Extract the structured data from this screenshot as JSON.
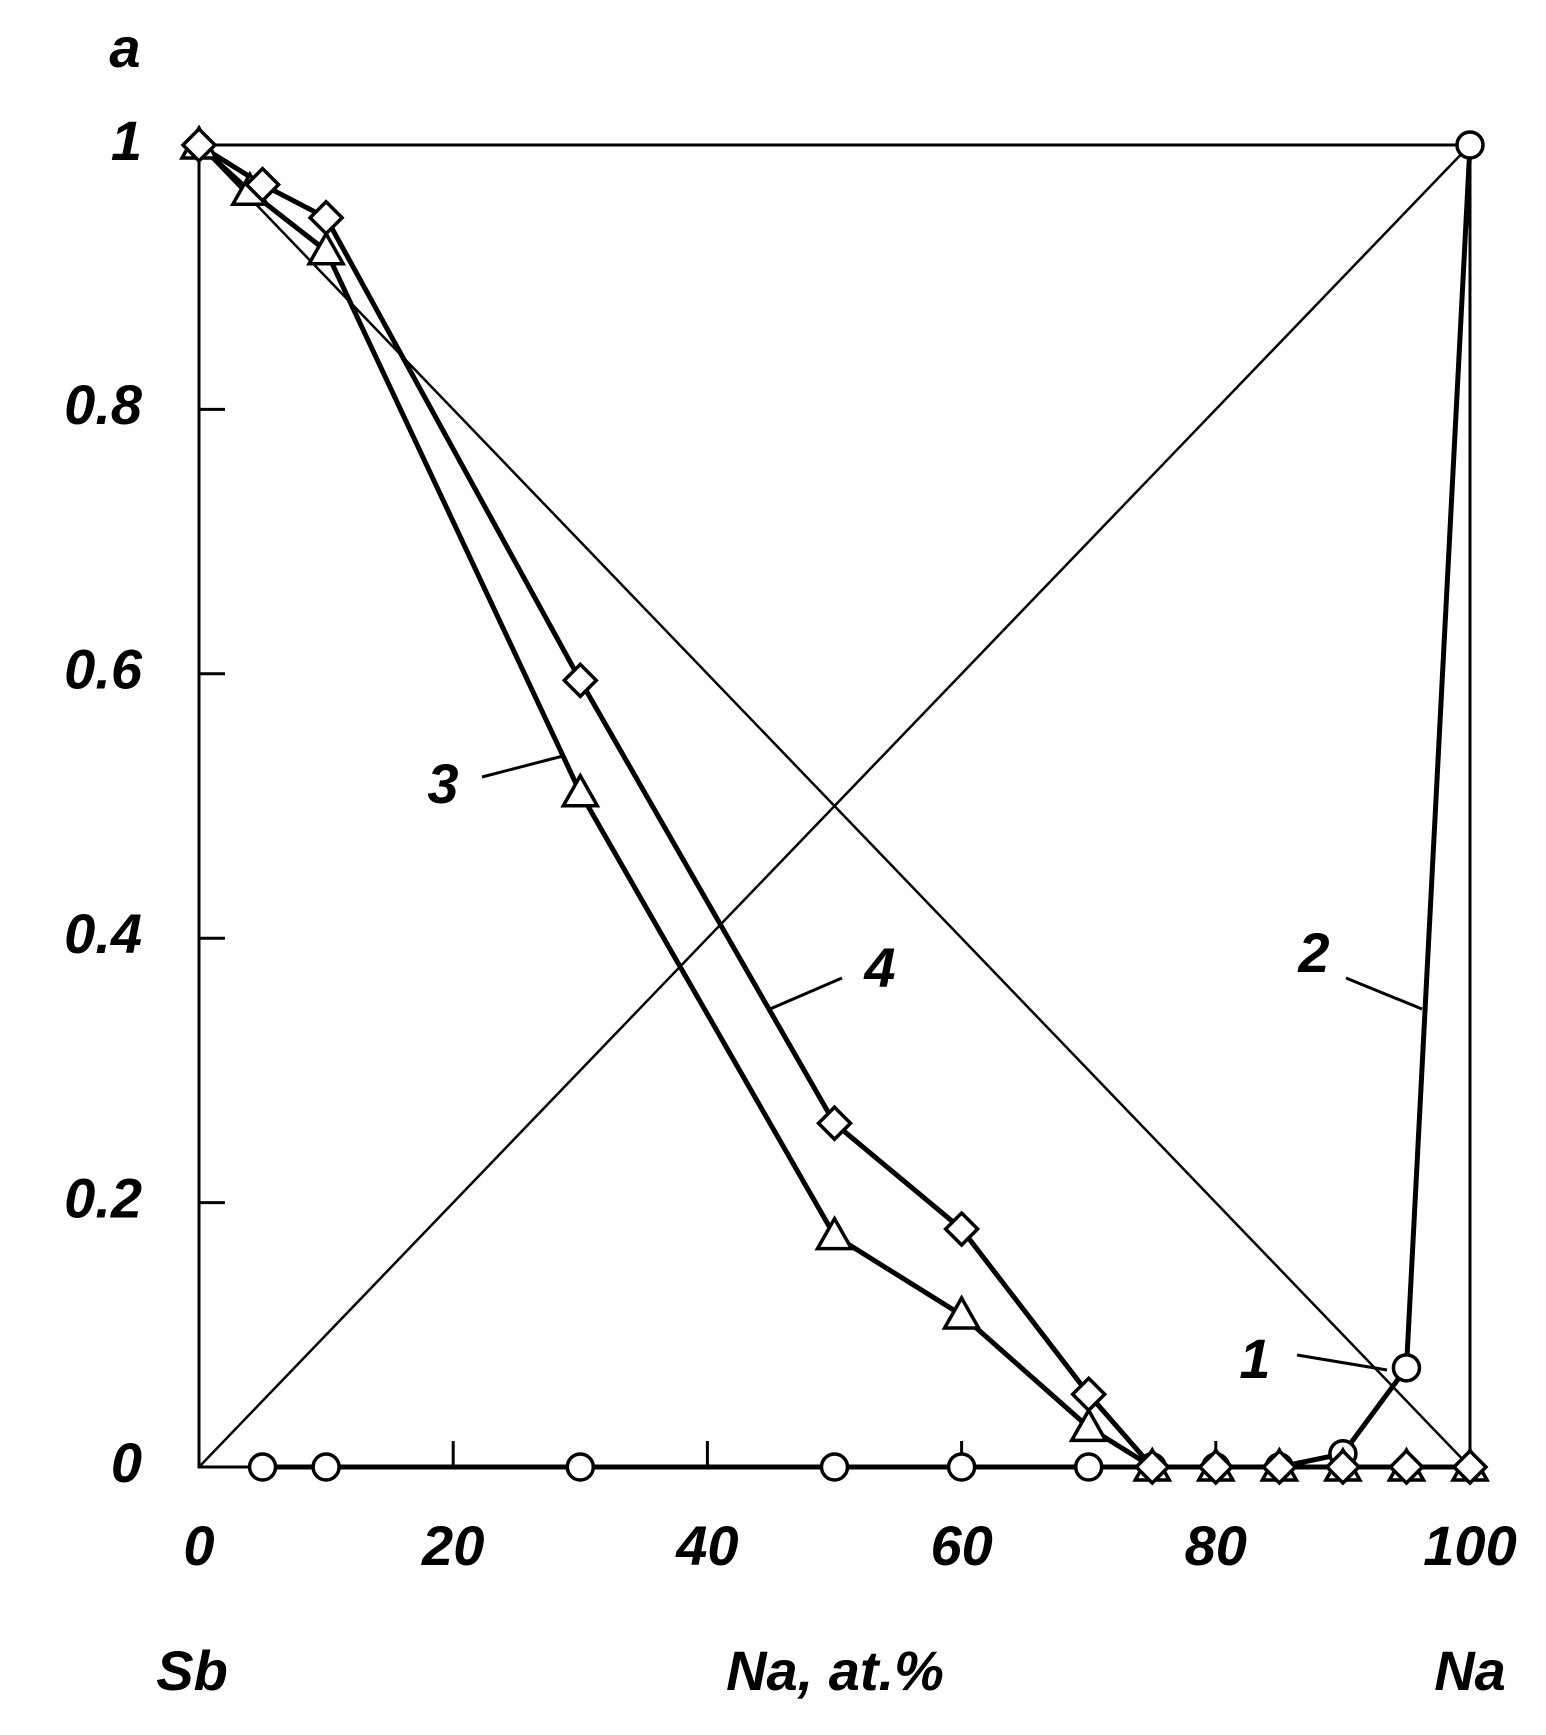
{
  "chart_data": {
    "type": "line",
    "panel_label": "a",
    "x_label": "Na, at.%",
    "x_left_label": "Sb",
    "x_right_label": "Na",
    "xlim": [
      0,
      100
    ],
    "xticks": [
      0,
      20,
      40,
      60,
      80,
      100
    ],
    "ylim": [
      0,
      1
    ],
    "yticks": [
      0,
      0.2,
      0.4,
      0.6,
      0.8,
      1
    ],
    "reference_lines": [
      {
        "x": [
          0,
          100
        ],
        "values": [
          1,
          0
        ]
      },
      {
        "x": [
          0,
          100
        ],
        "values": [
          0,
          1
        ]
      }
    ],
    "series": [
      {
        "marker": "circle",
        "color": "#000000",
        "x": [
          5,
          10,
          30,
          50,
          60,
          70,
          75,
          80,
          85,
          90,
          95,
          100
        ],
        "values": [
          0,
          0,
          0,
          0,
          0,
          0,
          0,
          0,
          0,
          0.01,
          0.075,
          1
        ]
      },
      {
        "name": "3",
        "marker": "triangle",
        "color": "#000000",
        "x": [
          0,
          4,
          10,
          30,
          50,
          60,
          70,
          75,
          80,
          85,
          90,
          95,
          100
        ],
        "values": [
          1,
          0.965,
          0.92,
          0.51,
          0.175,
          0.115,
          0.03,
          0,
          0,
          0,
          0,
          0,
          0
        ]
      },
      {
        "name": "4",
        "marker": "diamond",
        "color": "#000000",
        "x": [
          0,
          5,
          10,
          30,
          50,
          60,
          70,
          75,
          80,
          85,
          90,
          95,
          100
        ],
        "values": [
          1,
          0.97,
          0.945,
          0.595,
          0.26,
          0.18,
          0.055,
          0,
          0,
          0,
          0,
          0,
          0
        ]
      }
    ],
    "annotations": [
      "1",
      "2"
    ]
  }
}
